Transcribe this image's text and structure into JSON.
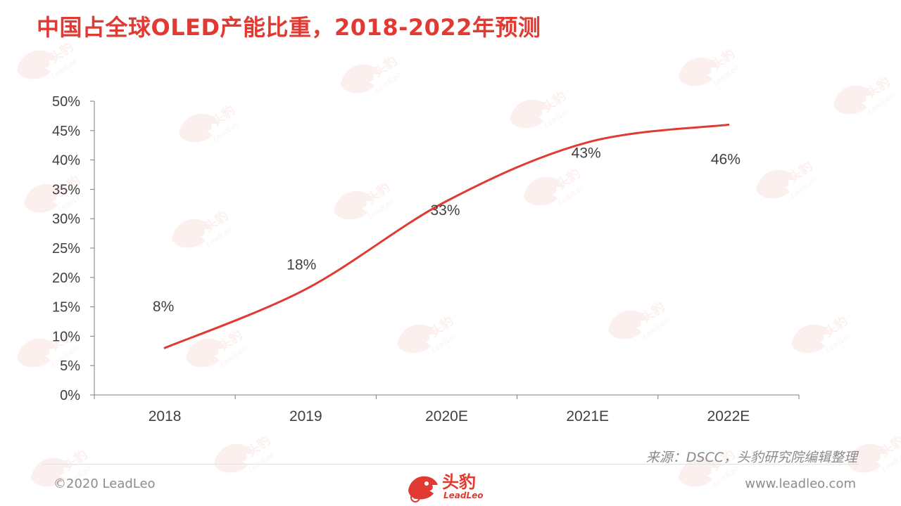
{
  "title": "中国占全球OLED产能比重，2018-2022年预测",
  "source": "来源：DSCC，头豹研究院编辑整理",
  "footer": {
    "copyright": "©2020 LeadLeo",
    "website": "www.leadleo.com",
    "brand_name": "头豹",
    "brand_sub": "LeadLeo"
  },
  "watermark": {
    "text_cn": "头豹",
    "text_en": "LeadLeo"
  },
  "colors": {
    "accent": "#e03a32",
    "axis": "#7f7f7f",
    "text": "#404040"
  },
  "chart_data": {
    "type": "line",
    "categories": [
      "2018",
      "2019",
      "2020E",
      "2021E",
      "2022E"
    ],
    "values": [
      8,
      18,
      33,
      43,
      46
    ],
    "data_labels": [
      "8%",
      "18%",
      "33%",
      "43%",
      "46%"
    ],
    "ylim": [
      0,
      50
    ],
    "yticks": [
      "0%",
      "5%",
      "10%",
      "15%",
      "20%",
      "25%",
      "30%",
      "35%",
      "40%",
      "45%",
      "50%"
    ],
    "smooth": true,
    "grid": false,
    "legend": "none",
    "line_color": "#e03a32"
  }
}
